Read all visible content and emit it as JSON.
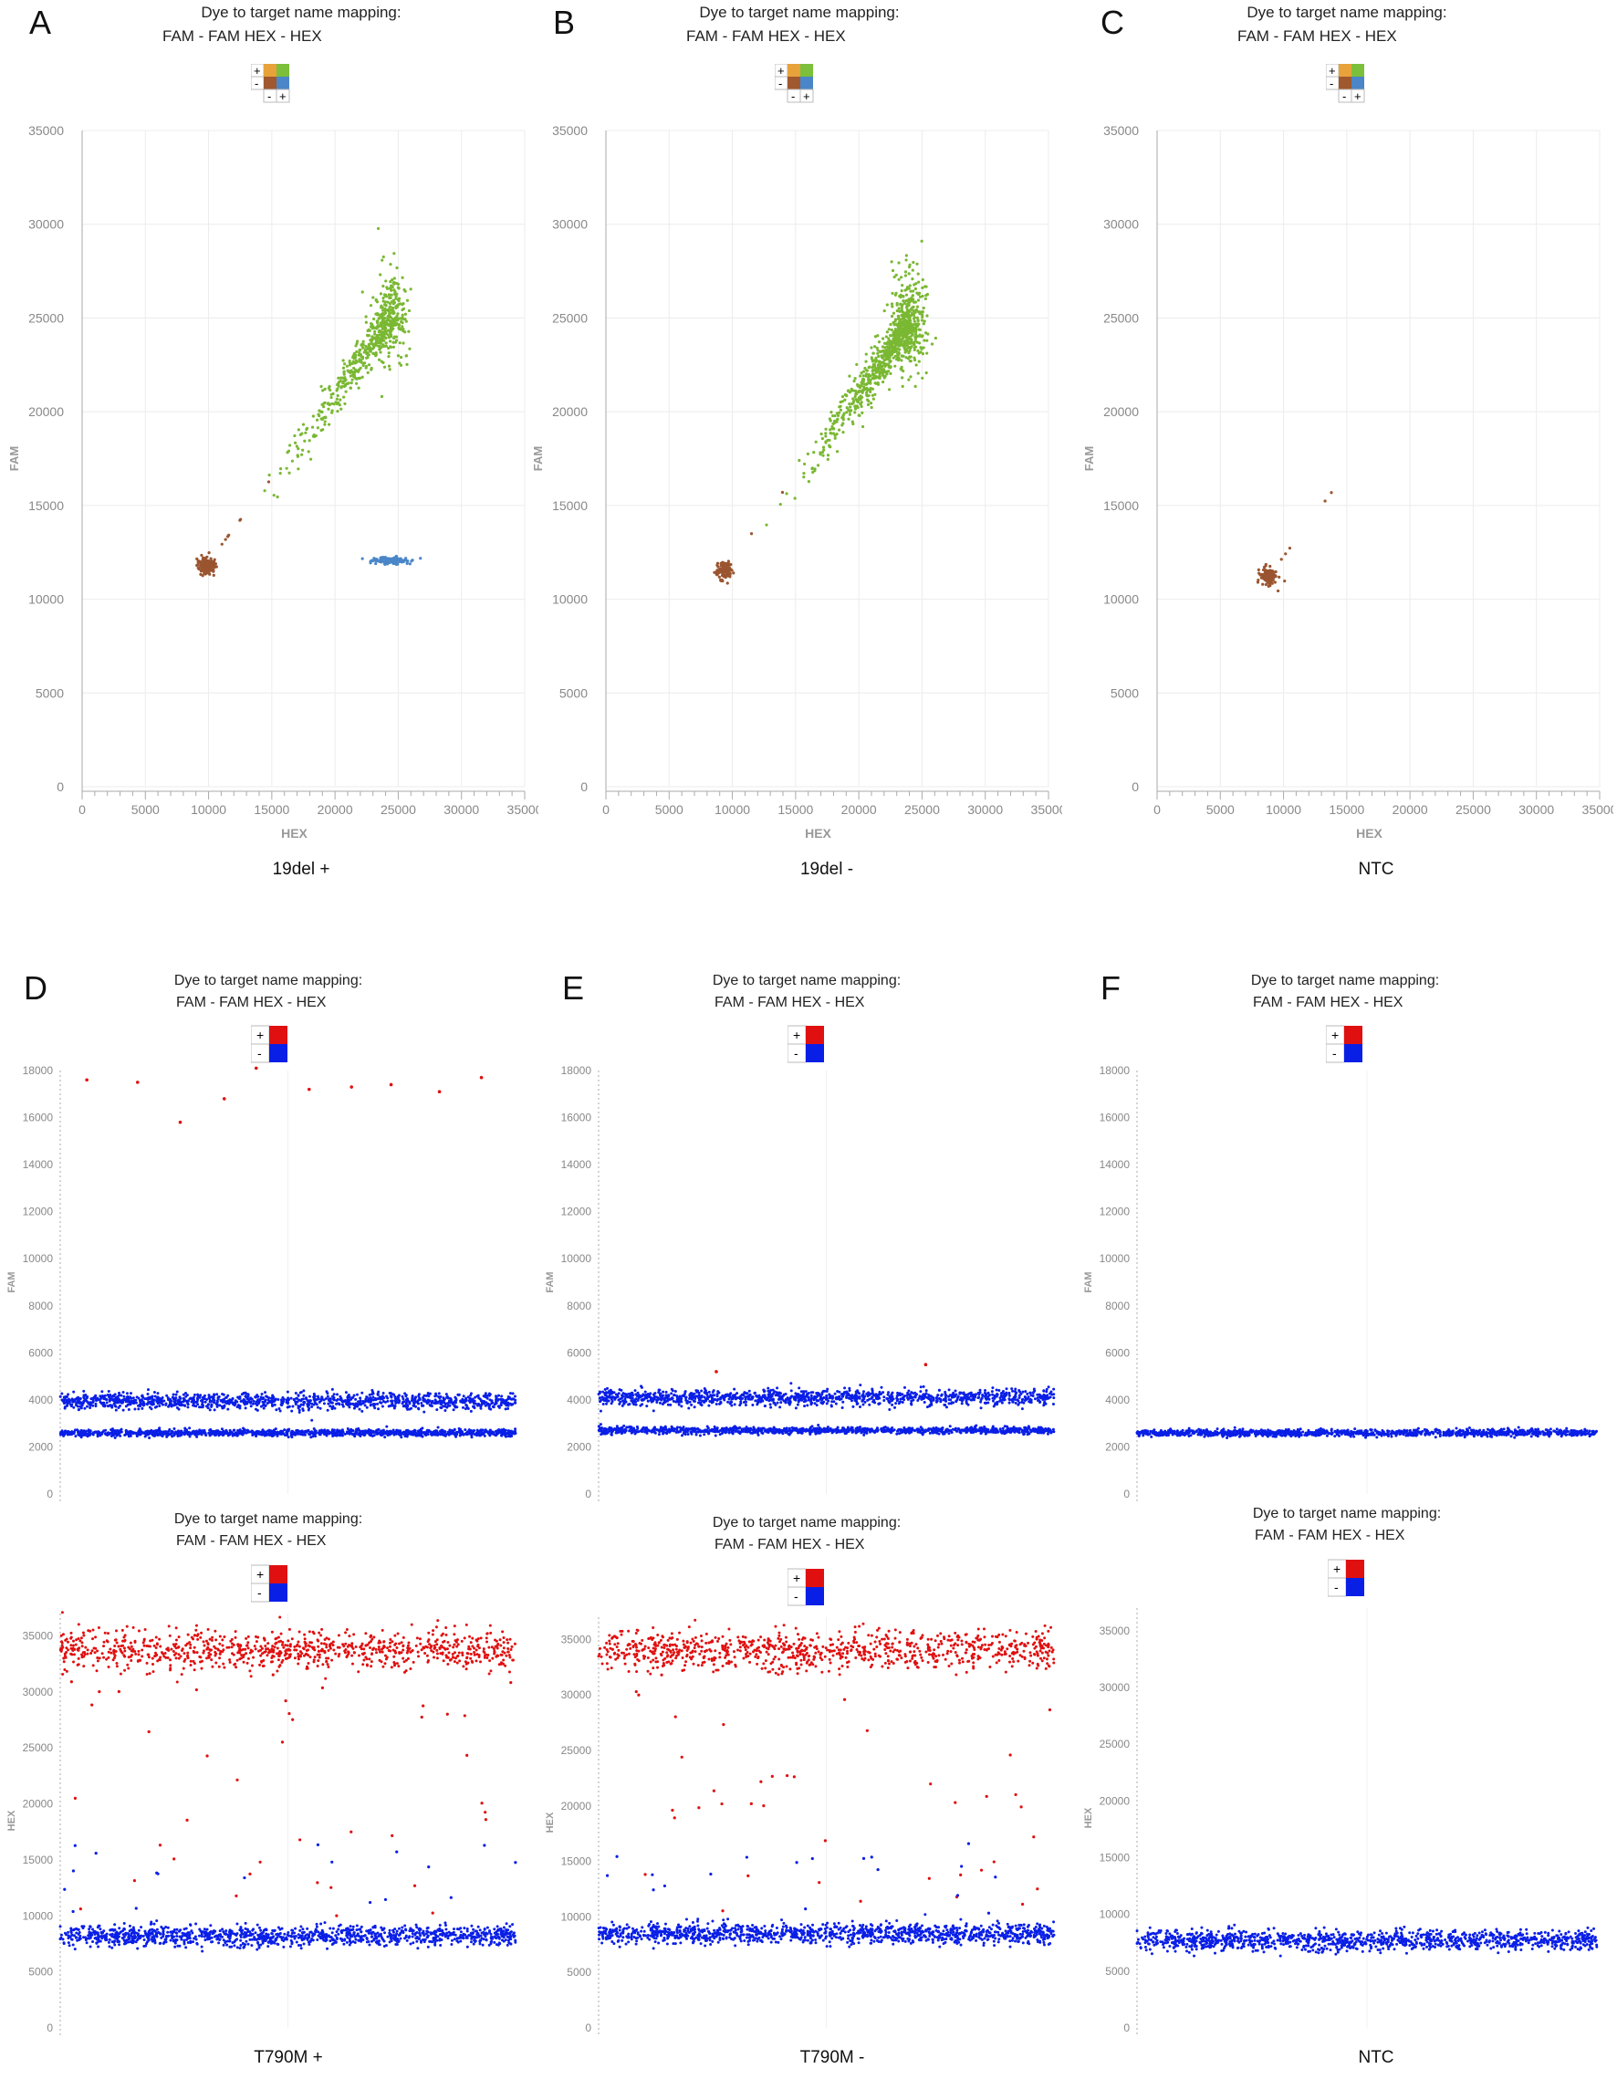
{
  "mapping": {
    "title": "Dye to target name mapping:",
    "row": "FAM  -  FAM        HEX  -  HEX"
  },
  "legend2d": {
    "colors": [
      "#e8a23a",
      "#7cbf3a",
      "#a0582e",
      "#4a86c8"
    ],
    "plus": "+",
    "minus": "-"
  },
  "legend1d": {
    "colors": [
      "#e01010",
      "#0a1fe6"
    ],
    "plus": "+",
    "minus": "-"
  },
  "colors": {
    "brown": "#9a5530",
    "green": "#7ab833",
    "lightblue": "#4a86c8",
    "red": "#e01010",
    "blue": "#0a1fe6"
  },
  "top_panels": [
    {
      "letter": "A",
      "caption": "19del +"
    },
    {
      "letter": "B",
      "caption": "19del -"
    },
    {
      "letter": "C",
      "caption": "NTC"
    }
  ],
  "bottom_panels": [
    {
      "letter": "D",
      "caption": "T790M +"
    },
    {
      "letter": "E",
      "caption": "T790M -"
    },
    {
      "letter": "F",
      "caption": "NTC"
    }
  ],
  "chart_data": [
    {
      "panel": "A",
      "type": "scatter",
      "xlabel": "HEX",
      "ylabel": "FAM",
      "xticks": [
        "0",
        "5000",
        "10000",
        "15000",
        "20000",
        "25000",
        "30000",
        "35000"
      ],
      "yticks": [
        "0",
        "5000",
        "10000",
        "15000",
        "20000",
        "25000",
        "30000",
        "35000"
      ],
      "xlim": [
        0,
        35000
      ],
      "ylim": [
        0,
        35000
      ],
      "grid": true,
      "clusters": [
        {
          "color": "brown",
          "center": [
            9800,
            11800
          ],
          "count": 180
        },
        {
          "color": "lightblue",
          "center": [
            24500,
            12050
          ],
          "count": 120
        },
        {
          "color": "green",
          "center": [
            24500,
            25200
          ],
          "count": 600
        }
      ]
    },
    {
      "panel": "B",
      "type": "scatter",
      "xlabel": "HEX",
      "ylabel": "FAM",
      "xticks": [
        "0",
        "5000",
        "10000",
        "15000",
        "20000",
        "25000",
        "30000",
        "35000"
      ],
      "yticks": [
        "0",
        "5000",
        "10000",
        "15000",
        "20000",
        "25000",
        "30000",
        "35000"
      ],
      "xlim": [
        0,
        35000
      ],
      "ylim": [
        0,
        35000
      ],
      "grid": true,
      "clusters": [
        {
          "color": "brown",
          "center": [
            9300,
            11500
          ],
          "count": 120
        },
        {
          "color": "green",
          "center": [
            24000,
            24800
          ],
          "count": 900
        }
      ]
    },
    {
      "panel": "C",
      "type": "scatter",
      "xlabel": "HEX",
      "ylabel": "FAM",
      "xticks": [
        "0",
        "5000",
        "10000",
        "15000",
        "20000",
        "25000",
        "30000",
        "35000"
      ],
      "yticks": [
        "0",
        "5000",
        "10000",
        "15000",
        "20000",
        "25000",
        "30000",
        "35000"
      ],
      "xlim": [
        0,
        35000
      ],
      "ylim": [
        0,
        35000
      ],
      "grid": true,
      "clusters": [
        {
          "color": "brown",
          "center": [
            8800,
            11200
          ],
          "count": 120
        }
      ]
    },
    {
      "panel": "D-FAM",
      "type": "scatter",
      "ylabel": "FAM",
      "yticks": [
        "0",
        "2000",
        "4000",
        "6000",
        "8000",
        "10000",
        "12000",
        "14000",
        "16000",
        "18000"
      ],
      "ylim": [
        0,
        18000
      ],
      "bands": [
        {
          "color": "blue",
          "y": 3950
        },
        {
          "color": "blue",
          "y": 2600
        }
      ],
      "scattered_red": [
        17600,
        17500,
        15800,
        16800,
        18100,
        17200,
        17300,
        17400,
        17100,
        17700
      ]
    },
    {
      "panel": "D-HEX",
      "type": "scatter",
      "ylabel": "HEX",
      "yticks": [
        "0",
        "5000",
        "10000",
        "15000",
        "20000",
        "25000",
        "30000",
        "35000"
      ],
      "ylim": [
        0,
        37000
      ],
      "bands": [
        {
          "color": "red",
          "y": 33700
        },
        {
          "color": "blue",
          "y": 8200
        }
      ]
    },
    {
      "panel": "E-FAM",
      "type": "scatter",
      "ylabel": "FAM",
      "yticks": [
        "0",
        "2000",
        "4000",
        "6000",
        "8000",
        "10000",
        "12000",
        "14000",
        "16000",
        "18000"
      ],
      "ylim": [
        0,
        18000
      ],
      "bands": [
        {
          "color": "blue",
          "y": 4100
        },
        {
          "color": "blue",
          "y": 2700
        }
      ],
      "scattered_red": [
        5200,
        5500
      ]
    },
    {
      "panel": "E-HEX",
      "type": "scatter",
      "ylabel": "HEX",
      "yticks": [
        "0",
        "5000",
        "10000",
        "15000",
        "20000",
        "25000",
        "30000",
        "35000"
      ],
      "ylim": [
        0,
        37000
      ],
      "bands": [
        {
          "color": "red",
          "y": 34000
        },
        {
          "color": "blue",
          "y": 8500
        }
      ]
    },
    {
      "panel": "F-FAM",
      "type": "scatter",
      "ylabel": "FAM",
      "yticks": [
        "0",
        "2000",
        "4000",
        "6000",
        "8000",
        "10000",
        "12000",
        "14000",
        "16000",
        "18000"
      ],
      "ylim": [
        0,
        18000
      ],
      "bands": [
        {
          "color": "blue",
          "y": 2600
        }
      ]
    },
    {
      "panel": "F-HEX",
      "type": "scatter",
      "ylabel": "HEX",
      "yticks": [
        "0",
        "5000",
        "10000",
        "15000",
        "20000",
        "25000",
        "30000",
        "35000"
      ],
      "ylim": [
        0,
        37000
      ],
      "bands": [
        {
          "color": "blue",
          "y": 7700
        }
      ]
    }
  ]
}
